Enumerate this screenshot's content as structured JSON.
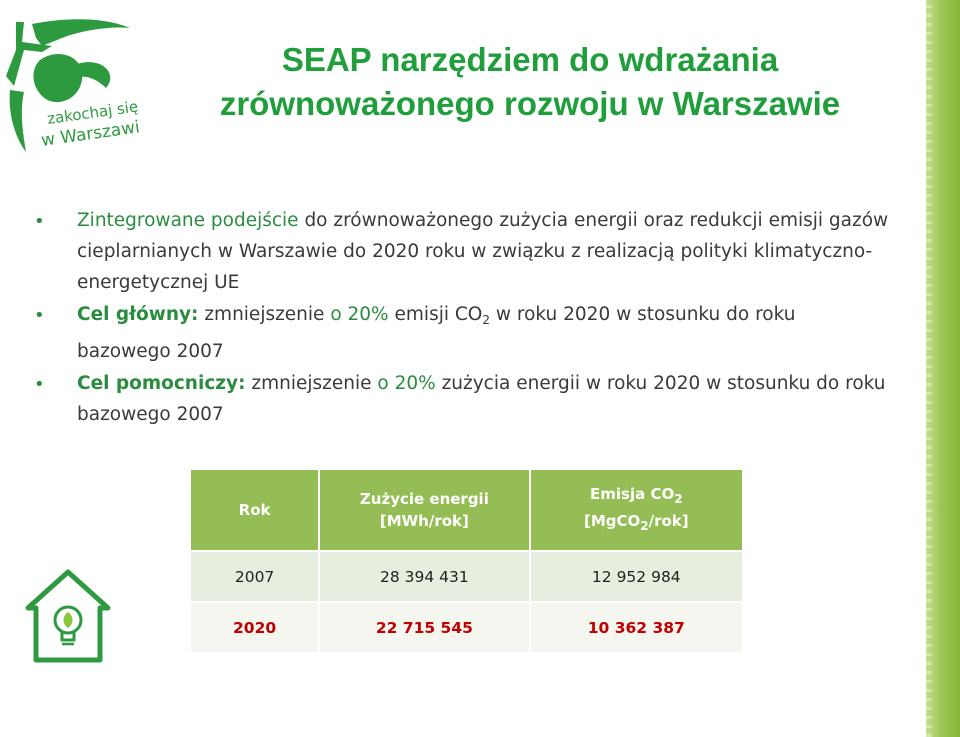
{
  "logo": {
    "text_line1": "zakochaj się",
    "text_line2": "w Warszawie"
  },
  "title": {
    "line1": "SEAP narzędziem do wdrażania",
    "line2": "zrównoważonego rozwoju w Warszawie"
  },
  "bullets": [
    {
      "lead": "Zintegrowane podejście",
      "text": " do zrównoważonego zużycia energii oraz redukcji emisji gazów cieplarnianych w Warszawie do 2020 roku w związku z realizacją polityki klimatyczno-energetycznej UE"
    },
    {
      "lead": "Cel główny:",
      "text_a": " zmniejszenie ",
      "pct": "o 20%",
      "text_b": " emisji CO",
      "sub": "2",
      "text_c": " w roku 2020 w stosunku do roku bazowego 2007"
    },
    {
      "lead": "Cel pomocniczy:",
      "text_a": " zmniejszenie ",
      "pct": "o 20%",
      "text_b": " zużycia energii w roku 2020 w stosunku do roku bazowego 2007"
    }
  ],
  "table": {
    "headers": {
      "col1": "Rok",
      "col2_line1": "Zużycie energii",
      "col2_line2": "[MWh/rok]",
      "col3_line1_a": "Emisja CO",
      "col3_line1_sub": "2",
      "col3_line2_a": "[MgCO",
      "col3_line2_sub": "2",
      "col3_line2_b": "/rok]"
    },
    "rows": [
      {
        "year": "2007",
        "energy": "28 394 431",
        "emission": "12 952 984"
      },
      {
        "year": "2020",
        "energy": "22 715 545",
        "emission": "10 362 387"
      }
    ]
  },
  "colors": {
    "title_green": "#1f9e3b",
    "accent_green": "#2a8c3e",
    "header_green": "#94bd55",
    "highlight_red": "#c00000"
  },
  "icons": [
    "zakochaj-logo",
    "house-lightbulb-icon",
    "bullet-dot"
  ]
}
